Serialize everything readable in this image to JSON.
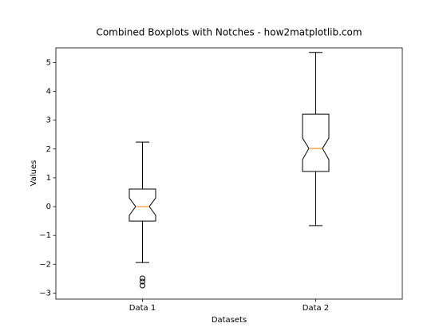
{
  "chart_data": {
    "type": "boxplot",
    "title": "Combined Boxplots with Notches - how2matplotlib.com",
    "xlabel": "Datasets",
    "ylabel": "Values",
    "categories": [
      "Data 1",
      "Data 2"
    ],
    "boxes": [
      {
        "whislo": -1.94,
        "q1": -0.5,
        "notch_low": -0.3,
        "median": 0.0,
        "notch_high": 0.3,
        "q3": 0.61,
        "whishi": 2.24,
        "fliers": [
          -2.49,
          -2.6,
          -2.74
        ]
      },
      {
        "whislo": -0.66,
        "q1": 1.22,
        "notch_low": 1.63,
        "median": 2.02,
        "notch_high": 2.38,
        "q3": 3.21,
        "whishi": 5.35,
        "fliers": []
      }
    ],
    "box_color": "#000000",
    "median_color": "#ff7f0e",
    "ylim": [
      -3.21,
      5.51
    ],
    "yticks": [
      {
        "value": -3,
        "label": "−3"
      },
      {
        "value": -2,
        "label": "−2"
      },
      {
        "value": -1,
        "label": "−1"
      },
      0,
      1,
      2,
      3,
      4,
      5
    ]
  }
}
